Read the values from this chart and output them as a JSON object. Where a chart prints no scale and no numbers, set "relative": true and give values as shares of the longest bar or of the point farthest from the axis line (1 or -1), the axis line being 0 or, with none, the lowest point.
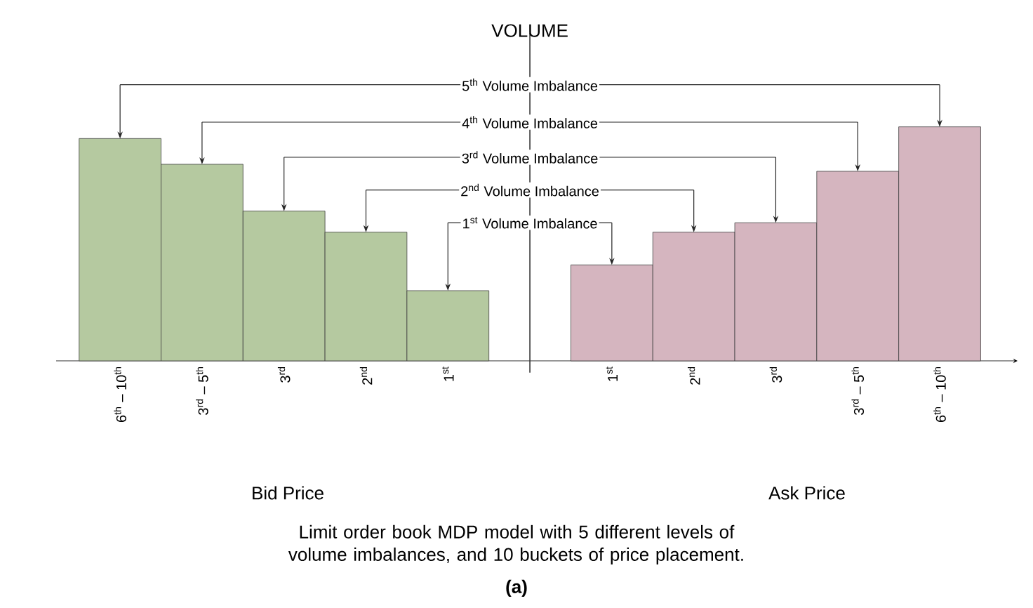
{
  "chart_data": {
    "type": "bar",
    "relative": true,
    "ylabel": "VOLUME",
    "categories": [
      "6$^{th}$ – 10$^{th}$",
      "3$^{rd}$ – 5$^{th}$",
      "3$^{rd}$",
      "2$^{nd}$",
      "1$^{st}$",
      null,
      "1$^{st}$",
      "2$^{nd}$",
      "3$^{rd}$",
      "3$^{rd}$ – 5$^{th}$",
      "6$^{th}$ – 10$^{th}$"
    ],
    "values": [
      0.95,
      0.84,
      0.64,
      0.55,
      0.3,
      null,
      0.41,
      0.55,
      0.59,
      0.81,
      1
    ],
    "colors": [
      "#b5c9a0",
      "#b5c9a0",
      "#b5c9a0",
      "#b5c9a0",
      "#b5c9a0",
      "#b5c9a0",
      "#d5b5bf",
      "#d5b5bf",
      "#d5b5bf",
      "#d5b5bf",
      "#d5b5bf"
    ],
    "annotations": [
      "1$^{st}$ Volume Imbalance",
      "2$^{nd}$ Volume Imbalance",
      "3$^{rd}$ Volume Imbalance",
      "4$^{th}$ Volume Imbalance",
      "5$^{th}$ Volume Imbalance",
      "Bid Price",
      "Ask Price",
      "Limit order book MDP model with 5 different levels of volume imbalances, and 10 buckets of price placement.",
      "(a)"
    ]
  }
}
